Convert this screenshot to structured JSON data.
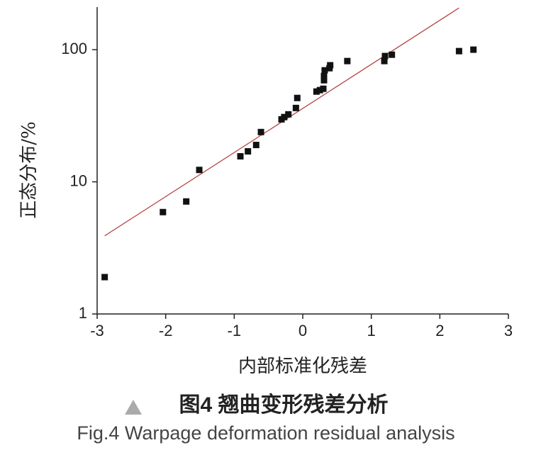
{
  "chart_data": {
    "type": "scatter",
    "x": [
      -2.89,
      -2.04,
      -1.7,
      -1.51,
      -0.91,
      -0.8,
      -0.68,
      -0.61,
      -0.31,
      -0.27,
      -0.21,
      -0.1,
      -0.08,
      0.2,
      0.25,
      0.3,
      0.31,
      0.31,
      0.32,
      0.39,
      0.4,
      0.65,
      1.19,
      1.2,
      1.3,
      2.28,
      2.49
    ],
    "values": [
      1.9,
      5.9,
      7.1,
      12.3,
      15.6,
      17,
      19,
      23.8,
      29.7,
      30.9,
      32.4,
      36.2,
      43.1,
      48.2,
      49.4,
      50.6,
      58.7,
      63.2,
      69.8,
      72.4,
      76.2,
      82,
      82,
      89.5,
      91.6,
      97.5,
      100
    ],
    "color": "#111111",
    "fit": {
      "x": [
        -2.89,
        2.28
      ],
      "values": [
        3.9,
        207
      ],
      "color": "#b03a3a"
    },
    "xlim": [
      -3,
      3
    ],
    "xticks": [
      -3,
      -2,
      -1,
      0,
      1,
      2,
      3
    ],
    "ylim": [
      1,
      210
    ],
    "yticks": [
      1,
      10,
      100
    ],
    "log_y": true,
    "xlabel": "内部标准化残差",
    "ylabel": "正态分布/%",
    "caption": "图4 翘曲变形残差分析",
    "caption_en": "Fig.4 Warpage deformation residual analysis"
  }
}
